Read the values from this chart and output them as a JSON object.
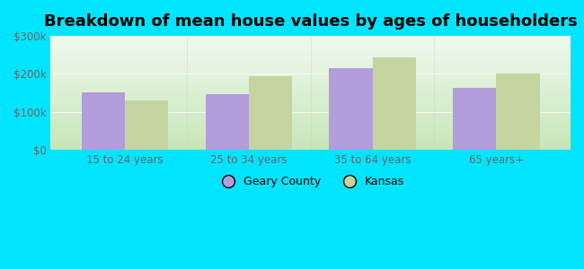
{
  "title": "Breakdown of mean house values by ages of householders",
  "categories": [
    "15 to 24 years",
    "25 to 34 years",
    "35 to 64 years",
    "65 years+"
  ],
  "geary_county": [
    152000,
    148000,
    215000,
    163000
  ],
  "kansas": [
    130000,
    193000,
    243000,
    200000
  ],
  "bar_color_geary": "#b39ddb",
  "bar_color_kansas": "#c5d5a0",
  "ylim": [
    0,
    300000
  ],
  "yticks": [
    0,
    100000,
    200000,
    300000
  ],
  "ytick_labels": [
    "$0",
    "$100k",
    "$200k",
    "$300k"
  ],
  "background_color": "#00e5ff",
  "legend_geary": "Geary County",
  "legend_kansas": "Kansas",
  "title_fontsize": 13,
  "bar_width": 0.35,
  "tick_label_color": "#666666",
  "tick_label_fontsize": 8.5
}
